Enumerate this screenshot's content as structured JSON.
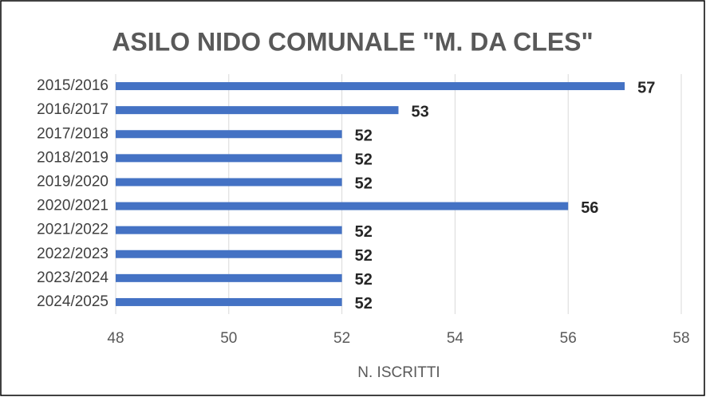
{
  "chart_data": {
    "type": "bar",
    "orientation": "horizontal",
    "title": "ASILO NIDO COMUNALE \"M. DA CLES\"",
    "x_label": "N. ISCRITTI",
    "categories": [
      "2015/2016",
      "2016/2017",
      "2017/2018",
      "2018/2019",
      "2019/2020",
      "2020/2021",
      "2021/2022",
      "2022/2023",
      "2023/2024",
      "2024/2025"
    ],
    "values": [
      57,
      53,
      52,
      52,
      52,
      56,
      52,
      52,
      52,
      52
    ],
    "color": "#4472c4",
    "xlim": [
      48,
      58
    ],
    "xticks": [
      48,
      50,
      52,
      54,
      56,
      58
    ],
    "grid": true
  }
}
